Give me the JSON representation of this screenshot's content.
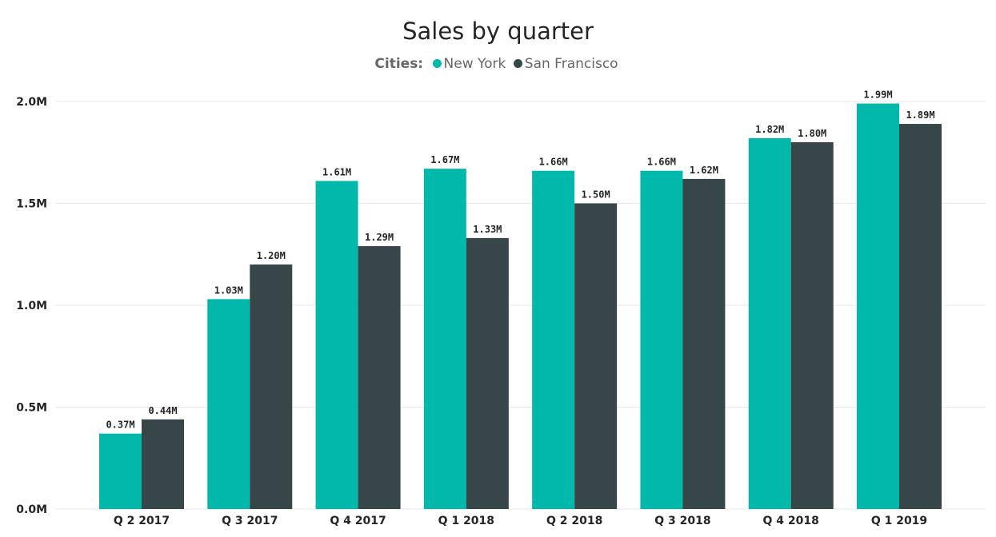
{
  "chart_data": {
    "type": "bar",
    "title": "Sales by quarter",
    "legend_title": "Cities:",
    "legend_position": "top-center",
    "categories": [
      "Q 2 2017",
      "Q 3 2017",
      "Q 4 2017",
      "Q 1 2018",
      "Q 2 2018",
      "Q 3 2018",
      "Q 4 2018",
      "Q 1 2019"
    ],
    "series": [
      {
        "name": "New York",
        "color": "#01b8aa",
        "values": [
          0.37,
          1.03,
          1.61,
          1.67,
          1.66,
          1.66,
          1.82,
          1.99
        ],
        "labels": [
          "0.37M",
          "1.03M",
          "1.61M",
          "1.67M",
          "1.66M",
          "1.66M",
          "1.82M",
          "1.99M"
        ]
      },
      {
        "name": "San Francisco",
        "color": "#374649",
        "values": [
          0.44,
          1.2,
          1.29,
          1.33,
          1.5,
          1.62,
          1.8,
          1.89
        ],
        "labels": [
          "0.44M",
          "1.20M",
          "1.29M",
          "1.33M",
          "1.50M",
          "1.62M",
          "1.80M",
          "1.89M"
        ]
      }
    ],
    "ylim": [
      0,
      2.0
    ],
    "yticks": [
      0,
      0.5,
      1.0,
      1.5,
      2.0
    ],
    "ytick_labels": [
      "0.0M",
      "0.5M",
      "1.0M",
      "1.5M",
      "2.0M"
    ],
    "xlabel": "",
    "ylabel": "",
    "grid": true
  }
}
